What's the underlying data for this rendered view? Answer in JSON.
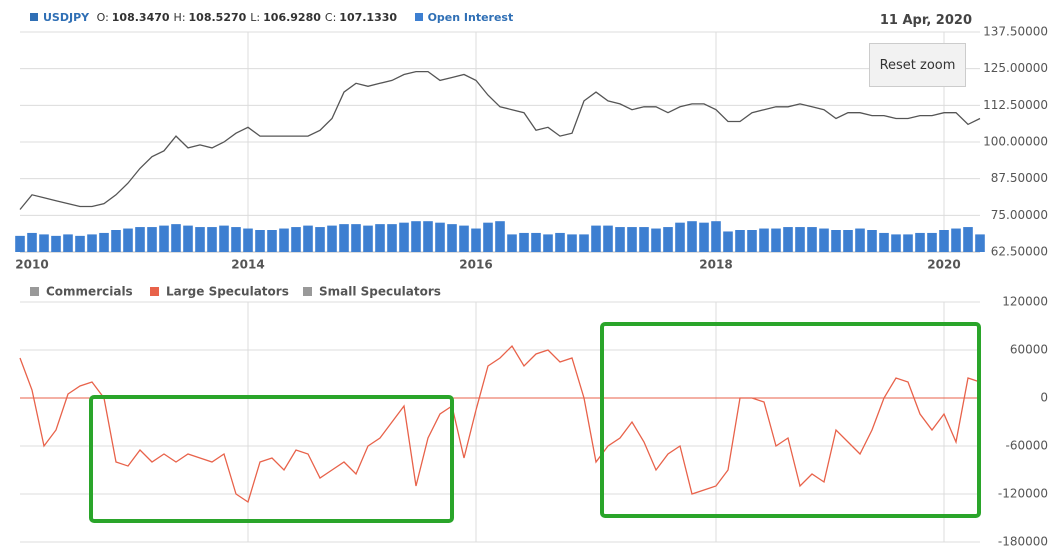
{
  "chart_data": [
    {
      "type": "price",
      "date_label": "11 Apr, 2020",
      "reset_button": "Reset zoom",
      "ohlc_readout": [
        {
          "label": "O:",
          "value": "108.3470"
        },
        {
          "label": "H:",
          "value": "108.5270"
        },
        {
          "label": "L:",
          "value": "106.9280"
        },
        {
          "label": "C:",
          "value": "107.1330"
        }
      ],
      "categories": [
        null,
        "2010",
        null,
        null,
        null,
        null,
        null,
        null,
        null,
        null,
        null,
        null,
        null,
        null,
        null,
        null,
        null,
        null,
        null,
        "2014",
        null,
        null,
        null,
        null,
        null,
        null,
        null,
        null,
        null,
        null,
        null,
        null,
        null,
        null,
        null,
        null,
        null,
        null,
        "2016",
        null,
        null,
        null,
        null,
        null,
        null,
        null,
        null,
        null,
        null,
        null,
        null,
        null,
        null,
        null,
        null,
        null,
        null,
        null,
        "2018",
        null,
        null,
        null,
        null,
        null,
        null,
        null,
        null,
        null,
        null,
        null,
        null,
        null,
        null,
        null,
        null,
        null,
        null,
        "2020",
        null,
        null,
        null
      ],
      "series": [
        {
          "name": "USDJPY",
          "type": "line",
          "color": "#555555",
          "legend_color": "#2f6fb5",
          "values": [
            77,
            82,
            81,
            80,
            79,
            78,
            78,
            79,
            82,
            86,
            91,
            95,
            97,
            102,
            98,
            99,
            98,
            100,
            103,
            105,
            102,
            102,
            102,
            102,
            102,
            104,
            108,
            117,
            120,
            119,
            120,
            121,
            123,
            124,
            124,
            121,
            122,
            123,
            121,
            116,
            112,
            111,
            110,
            104,
            105,
            102,
            103,
            114,
            117,
            114,
            113,
            111,
            112,
            112,
            110,
            112,
            113,
            113,
            111,
            107,
            107,
            110,
            111,
            112,
            112,
            113,
            112,
            111,
            108,
            110,
            110,
            109,
            109,
            108,
            108,
            109,
            109,
            110,
            110,
            106,
            108
          ]
        },
        {
          "name": "Open Interest",
          "type": "bar",
          "color": "#3d7fd1",
          "values": [
            68,
            69,
            68.5,
            68,
            68.5,
            68,
            68.5,
            69,
            70,
            70.5,
            71,
            71,
            71.5,
            72,
            71.5,
            71,
            71,
            71.5,
            71,
            70.5,
            70,
            70,
            70.5,
            71,
            71.5,
            71,
            71.5,
            72,
            72,
            71.5,
            72,
            72,
            72.5,
            73,
            73,
            72.5,
            72,
            71.5,
            70.5,
            72.5,
            73,
            68.5,
            69,
            69,
            68.5,
            69,
            68.5,
            68.5,
            71.5,
            71.5,
            71,
            71,
            71,
            70.5,
            71,
            72.5,
            73,
            72.5,
            73,
            69.5,
            70,
            70,
            70.5,
            70.5,
            71,
            71,
            71,
            70.5,
            70,
            70,
            70.5,
            70,
            69,
            68.5,
            68.5,
            69,
            69,
            70,
            70.5,
            71,
            68.5
          ]
        }
      ],
      "ylim": [
        62.5,
        137.5
      ],
      "yticks": [
        {
          "value": 62.5,
          "label": "62.50000"
        },
        {
          "value": 75,
          "label": "75.00000"
        },
        {
          "value": 87.5,
          "label": "87.50000"
        },
        {
          "value": 100,
          "label": "100.00000"
        },
        {
          "value": 112.5,
          "label": "112.50000"
        },
        {
          "value": 125,
          "label": "125.00000"
        },
        {
          "value": 137.5,
          "label": "137.50000"
        }
      ],
      "grid": true
    },
    {
      "type": "line",
      "series": [
        {
          "name": "Large Speculators",
          "color": "#e8624a",
          "values": [
            50000,
            10000,
            -60000,
            -40000,
            5000,
            15000,
            20000,
            0,
            -80000,
            -85000,
            -65000,
            -80000,
            -70000,
            -80000,
            -70000,
            -75000,
            -80000,
            -70000,
            -120000,
            -130000,
            -80000,
            -75000,
            -90000,
            -65000,
            -70000,
            -100000,
            -90000,
            -80000,
            -95000,
            -60000,
            -50000,
            -30000,
            -10000,
            -110000,
            -50000,
            -20000,
            -10000,
            -75000,
            -15000,
            40000,
            50000,
            65000,
            40000,
            55000,
            60000,
            45000,
            50000,
            0,
            -80000,
            -60000,
            -50000,
            -30000,
            -55000,
            -90000,
            -70000,
            -60000,
            -120000,
            -115000,
            -110000,
            -90000,
            0,
            0,
            -5000,
            -60000,
            -50000,
            -110000,
            -95000,
            -105000,
            -40000,
            -55000,
            -70000,
            -40000,
            0,
            25000,
            20000,
            -20000,
            -40000,
            -20000,
            -55000,
            25000,
            20000
          ]
        }
      ],
      "hidden_series": [
        {
          "name": "Commercials",
          "color": "#999999"
        },
        {
          "name": "Small Speculators",
          "color": "#999999"
        }
      ],
      "zero_line_color": "#e8624a",
      "ylim": [
        -180000,
        120000
      ],
      "yticks": [
        -180000,
        -120000,
        -60000,
        0,
        60000,
        120000
      ],
      "grid": true
    }
  ]
}
